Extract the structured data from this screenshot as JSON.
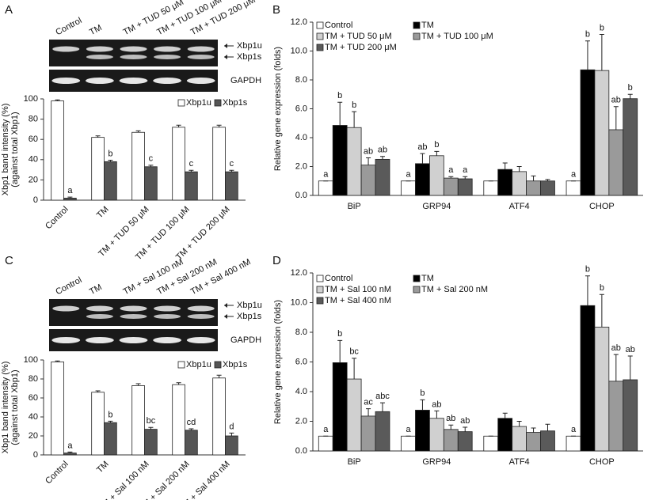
{
  "chart_data": [
    {
      "type": "bar",
      "panel": "A",
      "gel": {
        "lanes": [
          "Control",
          "TM",
          "TM + TUD 50 μM",
          "TM + TUD 100 μM",
          "TM + TUD 200 μM"
        ],
        "bands": [
          "Xbp1u",
          "Xbp1s"
        ],
        "loading": "GAPDH"
      },
      "ylabel": [
        "Xbp1 band intensity (%)",
        "(against total Xbp1)"
      ],
      "categories": [
        "Control",
        "TM",
        "TM + TUD 50 μM",
        "TM + TUD 100 μM",
        "TM + TUD 200 μM"
      ],
      "series": [
        {
          "name": "Xbp1u",
          "color": "#ffffff",
          "values": [
            98,
            62,
            67,
            72,
            72
          ],
          "errors": [
            1,
            1.5,
            1.5,
            2,
            2
          ]
        },
        {
          "name": "Xbp1s",
          "color": "#555555",
          "values": [
            2,
            38,
            33,
            28,
            28
          ],
          "errors": [
            1,
            1.5,
            1.5,
            1.5,
            1.5
          ],
          "letters": [
            "a",
            "b",
            "c",
            "c",
            "c"
          ]
        }
      ],
      "ylim": [
        0,
        100
      ],
      "yticks": [
        0,
        20,
        40,
        60,
        80,
        100
      ]
    },
    {
      "type": "bar",
      "panel": "B",
      "ylabel": [
        "Relative gene expression (folds)"
      ],
      "categories": [
        "BiP",
        "GRP94",
        "ATF4",
        "CHOP"
      ],
      "series": [
        {
          "name": "Control",
          "color": "#ffffff",
          "values": [
            1,
            1,
            1,
            1
          ],
          "errors": [
            0,
            0,
            0,
            0
          ],
          "letters": [
            "a",
            "a",
            null,
            "a"
          ]
        },
        {
          "name": "TM",
          "color": "#000000",
          "values": [
            4.85,
            2.2,
            1.8,
            8.7
          ],
          "errors": [
            1.6,
            0.7,
            0.45,
            2.0
          ],
          "letters": [
            "b",
            "ab",
            null,
            "b"
          ]
        },
        {
          "name": "TM + TUD 50 μM",
          "color": "#d0d0d0",
          "values": [
            4.7,
            2.75,
            1.65,
            8.65
          ],
          "errors": [
            1.1,
            0.3,
            0.35,
            2.5
          ],
          "letters": [
            "b",
            "b",
            null,
            "b"
          ]
        },
        {
          "name": "TM + TUD 100 μM",
          "color": "#9a9a9a",
          "values": [
            2.1,
            1.2,
            1.0,
            4.55
          ],
          "errors": [
            0.5,
            0.1,
            0.35,
            1.6
          ],
          "letters": [
            "ab",
            "a",
            null,
            "ab"
          ]
        },
        {
          "name": "TM + TUD 200 μM",
          "color": "#5a5a5a",
          "values": [
            2.5,
            1.15,
            1.0,
            6.7
          ],
          "errors": [
            0.2,
            0.15,
            0.1,
            0.3
          ],
          "letters": [
            "ab",
            "a",
            null,
            "b"
          ]
        }
      ],
      "ylim": [
        0,
        12
      ],
      "yticks": [
        {
          "value": 0,
          "label": "0.0"
        },
        {
          "value": 2,
          "label": "2.0"
        },
        {
          "value": 4,
          "label": "4.0"
        },
        {
          "value": 6,
          "label": "6.0"
        },
        {
          "value": 8,
          "label": "8.0"
        },
        {
          "value": 10,
          "label": "10.0"
        },
        {
          "value": 12,
          "label": "12.0"
        }
      ]
    },
    {
      "type": "bar",
      "panel": "C",
      "gel": {
        "lanes": [
          "Control",
          "TM",
          "TM + Sal 100 nM",
          "TM + Sal 200 nM",
          "TM + Sal 400 nM"
        ],
        "bands": [
          "Xbp1u",
          "Xbp1s"
        ],
        "loading": "GAPDH"
      },
      "ylabel": [
        "Xbp1 band intensity (%)",
        "(against total Xbp1)"
      ],
      "categories": [
        "Control",
        "TM",
        "TM + Sal 100 nM",
        "TM + Sal 200 nM",
        "TM + Sal 400 nM"
      ],
      "series": [
        {
          "name": "Xbp1u",
          "color": "#ffffff",
          "values": [
            98,
            66,
            73,
            74,
            81
          ],
          "errors": [
            1,
            1.5,
            2,
            2,
            3
          ]
        },
        {
          "name": "Xbp1s",
          "color": "#555555",
          "values": [
            2,
            34,
            27,
            26,
            20
          ],
          "errors": [
            1,
            1.5,
            2,
            1.5,
            3
          ],
          "letters": [
            "a",
            "b",
            "bc",
            "cd",
            "d"
          ]
        }
      ],
      "ylim": [
        0,
        100
      ],
      "yticks": [
        0,
        20,
        40,
        60,
        80,
        100
      ]
    },
    {
      "type": "bar",
      "panel": "D",
      "ylabel": [
        "Relative gene expression (folds)"
      ],
      "categories": [
        "BiP",
        "GRP94",
        "ATF4",
        "CHOP"
      ],
      "series": [
        {
          "name": "Control",
          "color": "#ffffff",
          "values": [
            1,
            1,
            1.0,
            1
          ],
          "errors": [
            0,
            0,
            0,
            0
          ],
          "letters": [
            "a",
            "a",
            null,
            "a"
          ]
        },
        {
          "name": "TM",
          "color": "#000000",
          "values": [
            5.95,
            2.75,
            2.2,
            9.8
          ],
          "errors": [
            1.5,
            0.7,
            0.35,
            2.0
          ],
          "letters": [
            "b",
            "b",
            null,
            "b"
          ]
        },
        {
          "name": "TM + Sal 100 nM",
          "color": "#d0d0d0",
          "values": [
            4.85,
            2.2,
            1.65,
            8.35
          ],
          "errors": [
            1.4,
            0.5,
            0.35,
            2.2
          ],
          "letters": [
            "bc",
            "ab",
            null,
            "b"
          ]
        },
        {
          "name": "TM + Sal 200 nM",
          "color": "#9a9a9a",
          "values": [
            2.35,
            1.45,
            1.25,
            4.7
          ],
          "errors": [
            0.5,
            0.3,
            0.3,
            1.8
          ],
          "letters": [
            "ac",
            "ab",
            null,
            "ab"
          ]
        },
        {
          "name": "TM + Sal 400 nM",
          "color": "#5a5a5a",
          "values": [
            2.65,
            1.3,
            1.35,
            4.8
          ],
          "errors": [
            0.6,
            0.3,
            0.45,
            1.6
          ],
          "letters": [
            "abc",
            "ab",
            null,
            "ab"
          ]
        }
      ],
      "ylim": [
        0,
        12
      ],
      "yticks": [
        {
          "value": 0,
          "label": "0.0"
        },
        {
          "value": 2,
          "label": "2.0"
        },
        {
          "value": 4,
          "label": "4.0"
        },
        {
          "value": 6,
          "label": "6.0"
        },
        {
          "value": 8,
          "label": "8.0"
        },
        {
          "value": 10,
          "label": "10.0"
        },
        {
          "value": 12,
          "label": "12.0"
        }
      ]
    }
  ]
}
